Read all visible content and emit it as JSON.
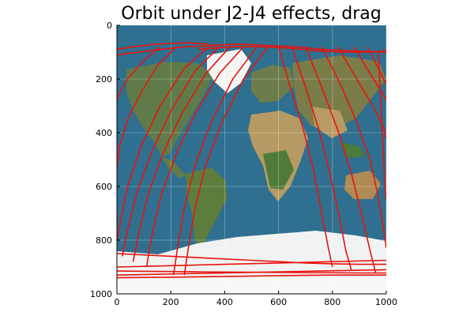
{
  "chart_data": {
    "type": "line",
    "title": "Orbit under J2-J4 effects, drag",
    "xlabel": "",
    "ylabel": "",
    "xlim": [
      0,
      1000
    ],
    "ylim": [
      0,
      1000
    ],
    "y_axis_inverted": true,
    "x_ticks": [
      "0",
      "200",
      "400",
      "600",
      "800",
      "1000"
    ],
    "y_ticks": [
      "0",
      "200",
      "400",
      "600",
      "800",
      "1000"
    ],
    "grid": true,
    "legend": "none",
    "background_image": "world map (equirectangular projection, satellite imagery)",
    "series": [
      {
        "color": "#e8140e",
        "segments": [
          {
            "x": [
              0,
              60,
              150,
              260,
              340
            ],
            "y": [
              90,
              80,
              70,
              65,
              70
            ]
          },
          {
            "x": [
              0,
              120,
              250,
              380
            ],
            "y": [
              110,
              95,
              80,
              75
            ]
          },
          {
            "x": [
              340,
              250,
              160,
              90,
              40,
              15,
              0
            ],
            "y": [
              80,
              160,
              300,
              450,
              600,
              720,
              800
            ]
          },
          {
            "x": [
              380,
              290,
              200,
              130,
              75,
              40,
              20
            ],
            "y": [
              80,
              170,
              320,
              470,
              620,
              760,
              860
            ]
          },
          {
            "x": [
              420,
              330,
              240,
              170,
              115,
              80,
              60
            ],
            "y": [
              80,
              180,
              330,
              480,
              630,
              780,
              880
            ]
          },
          {
            "x": [
              470,
              380,
              290,
              220,
              165,
              130,
              110
            ],
            "y": [
              80,
              180,
              330,
              480,
              630,
              780,
              900
            ]
          },
          {
            "x": [
              220,
              150,
              90,
              40,
              10,
              0
            ],
            "y": [
              80,
              150,
              250,
              350,
              450,
              530
            ]
          },
          {
            "x": [
              160,
              90,
              40,
              5,
              0
            ],
            "y": [
              80,
              140,
              200,
              260,
              280
            ]
          },
          {
            "x": [
              520,
              430,
              350,
              290,
              250,
              225,
              210
            ],
            "y": [
              80,
              200,
              360,
              520,
              680,
              830,
              930
            ]
          },
          {
            "x": [
              560,
              470,
              390,
              330,
              290,
              265,
              250
            ],
            "y": [
              80,
              200,
              360,
              520,
              680,
              830,
              930
            ]
          },
          {
            "x": [
              600,
              640,
              690,
              730,
              760,
              785,
              800
            ],
            "y": [
              80,
              220,
              380,
              540,
              700,
              830,
              900
            ]
          },
          {
            "x": [
              650,
              700,
              750,
              790,
              825,
              850,
              870
            ],
            "y": [
              80,
              230,
              390,
              550,
              710,
              840,
              910
            ]
          },
          {
            "x": [
              700,
              760,
              820,
              870,
              910,
              940,
              960
            ],
            "y": [
              80,
              230,
              390,
              550,
              710,
              840,
              920
            ]
          },
          {
            "x": [
              760,
              830,
              890,
              940,
              970,
              990,
              1000
            ],
            "y": [
              80,
              220,
              360,
              500,
              640,
              760,
              830
            ]
          },
          {
            "x": [
              820,
              890,
              950,
              990,
              1000
            ],
            "y": [
              80,
              200,
              300,
              380,
              420
            ]
          },
          {
            "x": [
              880,
              940,
              990,
              1000
            ],
            "y": [
              80,
              180,
              260,
              280
            ]
          },
          {
            "x": [
              930,
              980,
              1000
            ],
            "y": [
              80,
              180,
              220
            ]
          },
          {
            "x": [
              970,
              995,
              1000
            ],
            "y": [
              100,
              600,
              650
            ]
          },
          {
            "x": [
              340,
              450,
              560,
              660,
              760,
              860,
              1000
            ],
            "y": [
              75,
              70,
              75,
              80,
              90,
              95,
              100
            ]
          },
          {
            "x": [
              300,
              420,
              540,
              640,
              740,
              840,
              940,
              1000
            ],
            "y": [
              90,
              80,
              80,
              85,
              95,
              100,
              100,
              95
            ]
          },
          {
            "x": [
              0,
              100,
              200,
              300,
              400,
              500,
              600,
              700,
              800,
              900,
              1000
            ],
            "y": [
              850,
              855,
              860,
              865,
              870,
              875,
              880,
              885,
              888,
              890,
              890
            ]
          },
          {
            "x": [
              0,
              200,
              400,
              600,
              800,
              1000
            ],
            "y": [
              900,
              895,
              890,
              885,
              880,
              875
            ]
          },
          {
            "x": [
              0,
              250,
              500,
              750,
              1000
            ],
            "y": [
              930,
              925,
              920,
              915,
              910
            ]
          },
          {
            "x": [
              0,
              200,
              400,
              600,
              800,
              1000
            ],
            "y": [
              940,
              938,
              935,
              932,
              930,
              930
            ]
          },
          {
            "x": [
              0,
              300,
              600,
              900,
              1000
            ],
            "y": [
              915,
              918,
              920,
              922,
              922
            ]
          }
        ]
      }
    ]
  }
}
